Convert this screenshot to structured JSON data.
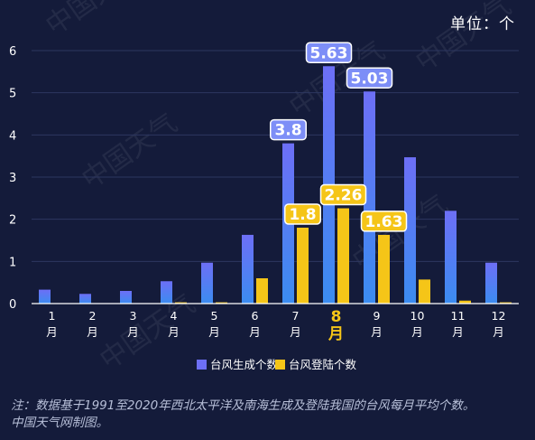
{
  "unit_label": "单位：个",
  "footnote": {
    "line1": "注：数据基于1991至2020年西北太平洋及南海生成及登陆我国的台风每月平均个数。",
    "line2": "中国天气网制图。"
  },
  "watermark_text": "中国天气",
  "colors": {
    "background": "#141b3a",
    "grid": "#2d3760",
    "generated_top": "#6d6ff6",
    "generated_bottom": "#3b8cf0",
    "landed": "#f5c518",
    "label_generated_bg": "#7d8ef7",
    "label_landed_bg": "#f5c518",
    "axis_text": "#ffffff",
    "highlight_month": "#f5c518"
  },
  "chart_data": {
    "type": "bar",
    "categories": [
      "1\n月",
      "2\n月",
      "3\n月",
      "4\n月",
      "5\n月",
      "6\n月",
      "7\n月",
      "8\n月",
      "9\n月",
      "10\n月",
      "11\n月",
      "12\n月"
    ],
    "month_numbers": [
      "1",
      "2",
      "3",
      "4",
      "5",
      "6",
      "7",
      "8",
      "9",
      "10",
      "11",
      "12"
    ],
    "month_suffix": "月",
    "highlight_category_index": 7,
    "series": [
      {
        "name": "台风生成个数",
        "values": [
          0.33,
          0.23,
          0.3,
          0.53,
          0.97,
          1.63,
          3.8,
          5.63,
          5.03,
          3.47,
          2.2,
          0.97
        ],
        "labels": [
          "",
          "",
          "",
          "",
          "",
          "",
          "3.8",
          "5.63",
          "5.03",
          "",
          "",
          ""
        ]
      },
      {
        "name": "台风登陆个数",
        "values": [
          0,
          0,
          0,
          0.03,
          0.03,
          0.6,
          1.8,
          2.26,
          1.63,
          0.57,
          0.07,
          0.03
        ],
        "labels": [
          "",
          "",
          "",
          "",
          "",
          "",
          "1.8",
          "2.26",
          "1.63",
          "",
          "",
          ""
        ]
      }
    ],
    "ylim": [
      0,
      6
    ],
    "yticks": [
      "0",
      "1",
      "2",
      "3",
      "4",
      "5",
      "6"
    ],
    "grid": true,
    "legend_position": "bottom-center",
    "xlabel": "",
    "ylabel": ""
  }
}
